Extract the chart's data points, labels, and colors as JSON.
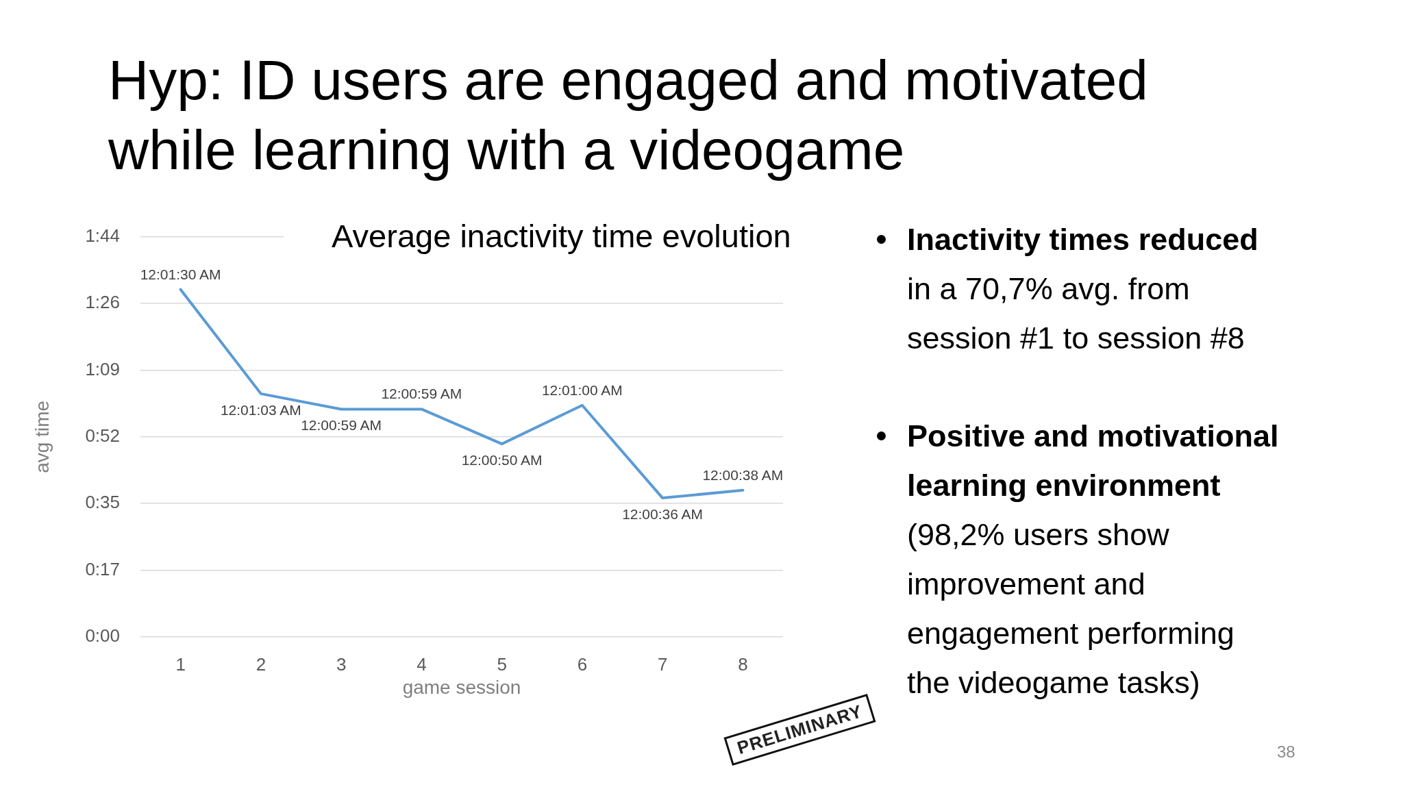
{
  "chart_data": {
    "type": "line",
    "title": "Hyp: ID users are engaged and motivated while learning with a videogame",
    "subtitle": "Average inactivity time evolution",
    "xlabel": "game session",
    "ylabel": "avg time",
    "categories": [
      "1",
      "2",
      "3",
      "4",
      "5",
      "6",
      "7",
      "8"
    ],
    "series": [
      {
        "color": "#5b9bd5",
        "values": [
          90,
          63,
          59,
          59,
          50,
          60,
          36,
          38
        ],
        "value_labels": [
          "12:01:30 AM",
          "12:01:03 AM",
          "12:00:59 AM",
          "12:00:59 AM",
          "12:00:50 AM",
          "12:01:00 AM",
          "12:00:36 AM",
          "12:00:38 AM"
        ]
      }
    ],
    "ylim": [
      0,
      103.68
    ],
    "yticks": [
      {
        "value": 0,
        "label": "0:00"
      },
      {
        "value": 17.28,
        "label": "0:17"
      },
      {
        "value": 34.56,
        "label": "0:35"
      },
      {
        "value": 51.84,
        "label": "0:52"
      },
      {
        "value": 69.12,
        "label": "1:09"
      },
      {
        "value": 86.4,
        "label": "1:26"
      },
      {
        "value": 103.68,
        "label": "1:44"
      }
    ],
    "grid": "y",
    "legend": false,
    "marker": "none",
    "line_style": "solid",
    "annotations": [
      "Inactivity times reduced",
      "in a 70,7% avg. from session #1 to session #8",
      "Positive and motivational learning environment",
      "(98,2% users show improvement and engagement performing the videogame tasks)",
      "PRELIMINARY",
      "38"
    ]
  }
}
